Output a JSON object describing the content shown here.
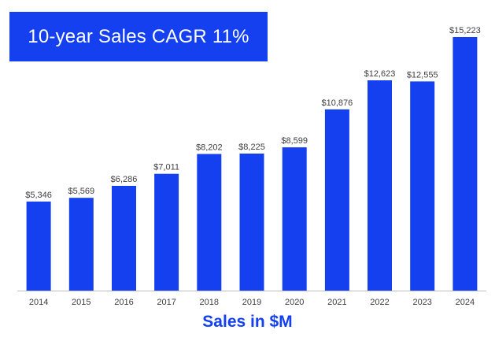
{
  "colors": {
    "accent": "#1440f0",
    "title_bg": "#1440f0",
    "axis": "#bfbfbf",
    "text": "#404040"
  },
  "chart_data": {
    "type": "bar",
    "title": "10-year Sales CAGR 11%",
    "xlabel": "Sales in $M",
    "ylabel": "",
    "categories": [
      "2014",
      "2015",
      "2016",
      "2017",
      "2018",
      "2019",
      "2020",
      "2021",
      "2022",
      "2023",
      "2024"
    ],
    "values": [
      5346,
      5569,
      6286,
      7011,
      8202,
      8225,
      8599,
      10876,
      12623,
      12555,
      15223
    ],
    "data_labels": [
      "$5,346",
      "$5,569",
      "$6,286",
      "$7,011",
      "$8,202",
      "$8,225",
      "$8,599",
      "$10,876",
      "$12,623",
      "$12,555",
      "$15,223"
    ],
    "ylim": [
      0,
      15223
    ],
    "grid": false,
    "legend": "none"
  }
}
